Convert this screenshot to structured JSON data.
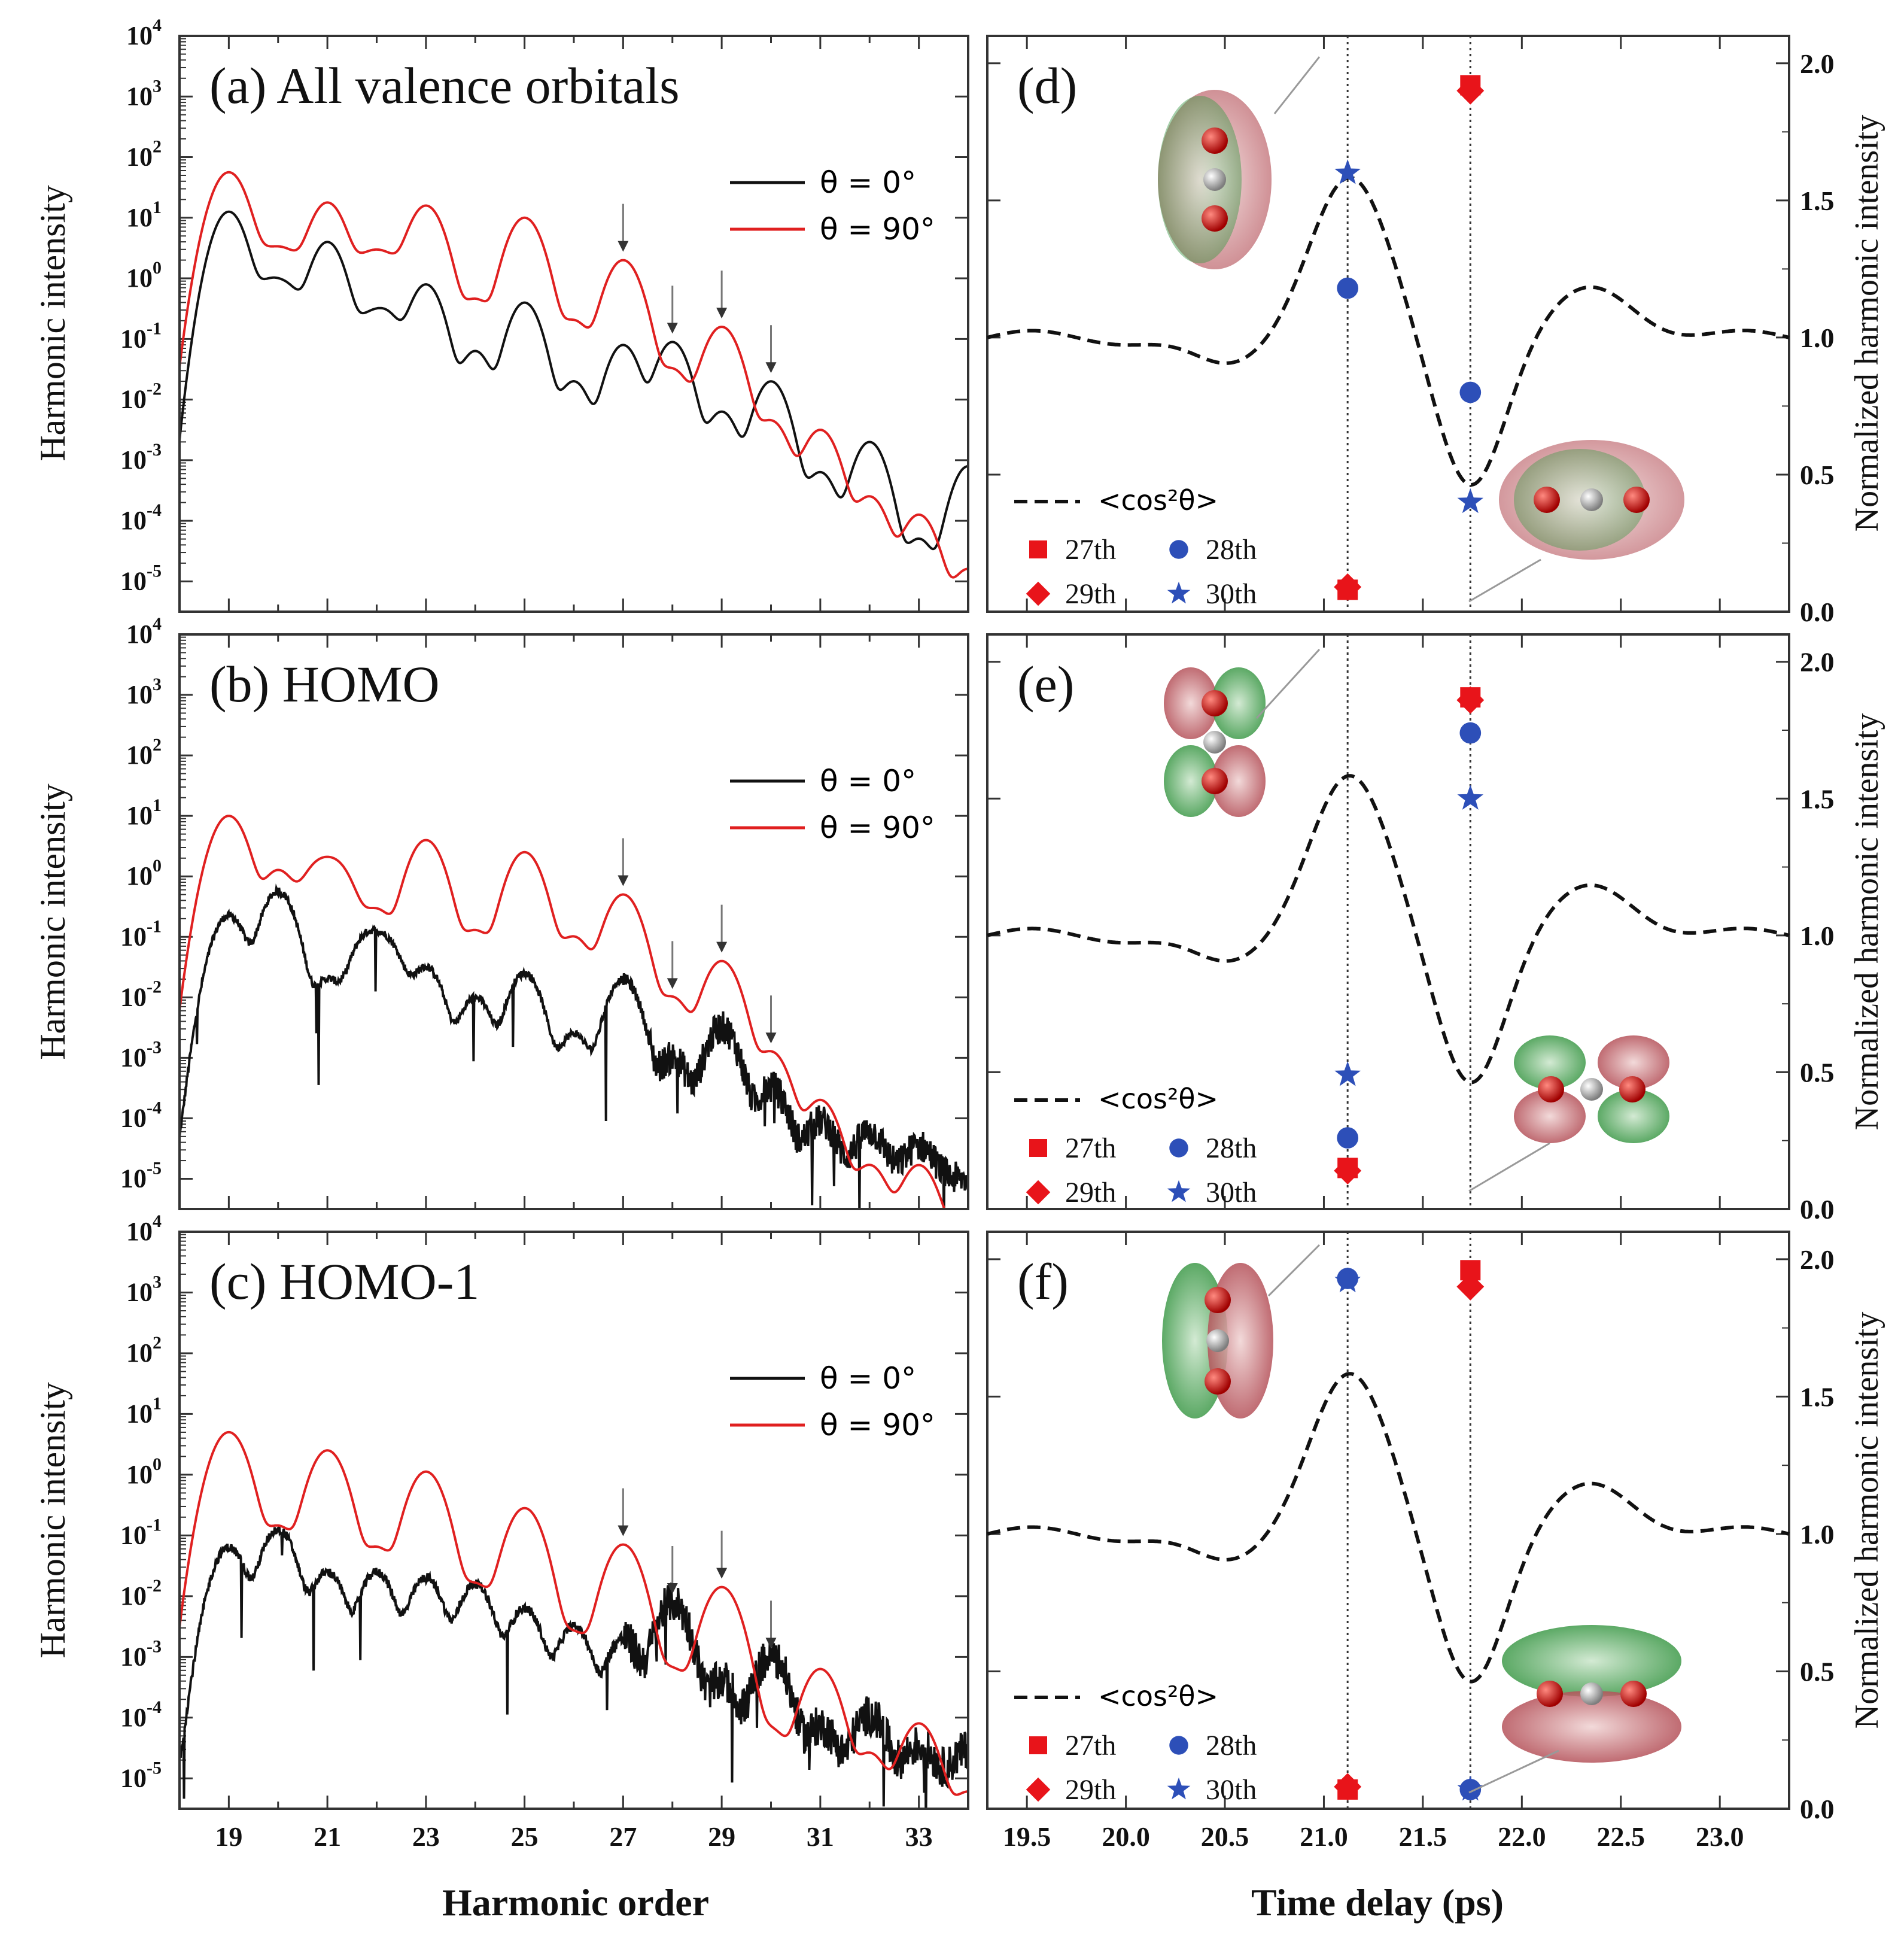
{
  "figure": {
    "left_axis_label": "Harmonic intensity",
    "right_axis_label": "Normalized harmonic intensity",
    "left_xlabel": "Harmonic order",
    "right_xlabel": "Time delay (ps)"
  },
  "colors": {
    "theta0": "#111111",
    "theta90": "#e02020",
    "red_marker": "#e8141a",
    "blue_marker": "#2d4fb8",
    "curve": "#111111",
    "frame": "#333333"
  },
  "chart_data": [
    {
      "id": "a",
      "type": "line",
      "scale": "log",
      "title": "(a) All valence orbitals",
      "xlabel": "Harmonic order",
      "ylabel": "Harmonic intensity",
      "xlim": [
        18.0,
        34.0
      ],
      "ylim_exp": [
        -5.5,
        4
      ],
      "xticks": [
        19,
        21,
        23,
        25,
        27,
        29,
        31,
        33
      ],
      "ytick_exps": [
        -5,
        -4,
        -3,
        -2,
        -1,
        0,
        1,
        2,
        3,
        4
      ],
      "legend": [
        "θ = 0°",
        "θ = 90°"
      ],
      "arrows_at": [
        27,
        28,
        29,
        30
      ],
      "noise_start": 34,
      "series": [
        {
          "name": "θ = 0°",
          "peaks": [
            [
              19,
              1.1
            ],
            [
              19.8,
              -0.1
            ],
            [
              20.2,
              -0.2
            ],
            [
              21,
              0.6
            ],
            [
              21.8,
              -0.7
            ],
            [
              22.2,
              -0.6
            ],
            [
              23,
              -0.1
            ],
            [
              24,
              -1.2
            ],
            [
              25,
              -0.4
            ],
            [
              26,
              -1.7
            ],
            [
              27,
              -1.1
            ],
            [
              28,
              -1.05
            ],
            [
              29,
              -2.2
            ],
            [
              30,
              -1.7
            ],
            [
              31,
              -3.2
            ],
            [
              32,
              -2.7
            ],
            [
              33,
              -4.3
            ],
            [
              34,
              -3.1
            ]
          ],
          "width": 0.24,
          "floor": -6.8,
          "jitter": 0.0
        },
        {
          "name": "θ = 90°",
          "peaks": [
            [
              19,
              1.75
            ],
            [
              19.8,
              0.35
            ],
            [
              20.2,
              0.35
            ],
            [
              21,
              1.25
            ],
            [
              21.8,
              0.3
            ],
            [
              22.2,
              0.3
            ],
            [
              23,
              1.2
            ],
            [
              24,
              -0.35
            ],
            [
              25,
              1.0
            ],
            [
              26,
              -0.7
            ],
            [
              27,
              0.3
            ],
            [
              28,
              -1.5
            ],
            [
              29,
              -0.8
            ],
            [
              30,
              -2.35
            ],
            [
              31,
              -2.5
            ],
            [
              32,
              -3.6
            ],
            [
              33,
              -3.9
            ],
            [
              34,
              -4.8
            ]
          ],
          "width": 0.26,
          "floor": -6.8,
          "jitter": 0.0
        }
      ]
    },
    {
      "id": "b",
      "type": "line",
      "scale": "log",
      "title": "(b) HOMO",
      "xlabel": "Harmonic order",
      "ylabel": "Harmonic intensity",
      "xlim": [
        18.0,
        34.0
      ],
      "ylim_exp": [
        -5.5,
        4
      ],
      "xticks": [
        19,
        21,
        23,
        25,
        27,
        29,
        31,
        33
      ],
      "ytick_exps": [
        -5,
        -4,
        -3,
        -2,
        -1,
        0,
        1,
        2,
        3,
        4
      ],
      "legend": [
        "θ = 0°",
        "θ = 90°"
      ],
      "arrows_at": [
        27,
        28,
        29,
        30
      ],
      "noise_start": 27.5,
      "series": [
        {
          "name": "θ = 0°",
          "peaks": [
            [
              19,
              -0.65
            ],
            [
              20,
              -0.25
            ],
            [
              21,
              -1.7
            ],
            [
              21.8,
              -1.0
            ],
            [
              22.2,
              -1.1
            ],
            [
              23,
              -1.5
            ],
            [
              24,
              -2.0
            ],
            [
              25,
              -1.6
            ],
            [
              26,
              -2.6
            ],
            [
              27,
              -1.7
            ],
            [
              28,
              -3.0
            ],
            [
              29,
              -2.5
            ],
            [
              30,
              -3.5
            ],
            [
              31,
              -4.1
            ],
            [
              32,
              -4.3
            ],
            [
              33,
              -4.6
            ]
          ],
          "width": 0.24,
          "floor": -5.0,
          "jitter": 0.25
        },
        {
          "name": "θ = 90°",
          "peaks": [
            [
              19,
              1.0
            ],
            [
              20,
              0.1
            ],
            [
              20.8,
              0.15
            ],
            [
              21.2,
              0.15
            ],
            [
              22,
              -0.55
            ],
            [
              23,
              0.6
            ],
            [
              24,
              -0.9
            ],
            [
              25,
              0.4
            ],
            [
              26,
              -1.0
            ],
            [
              27,
              -0.3
            ],
            [
              28,
              -2.0
            ],
            [
              29,
              -1.4
            ],
            [
              30,
              -2.9
            ],
            [
              31,
              -3.7
            ],
            [
              32,
              -4.8
            ],
            [
              33,
              -4.8
            ]
          ],
          "width": 0.26,
          "floor": -6.0,
          "jitter": 0.0
        }
      ]
    },
    {
      "id": "c",
      "type": "line",
      "scale": "log",
      "title": "(c) HOMO-1",
      "xlabel": "Harmonic order",
      "ylabel": "Harmonic intensity",
      "xlim": [
        18.0,
        34.0
      ],
      "ylim_exp": [
        -5.5,
        4
      ],
      "xticks": [
        19,
        21,
        23,
        25,
        27,
        29,
        31,
        33
      ],
      "ytick_exps": [
        -5,
        -4,
        -3,
        -2,
        -1,
        0,
        1,
        2,
        3,
        4
      ],
      "legend": [
        "θ = 0°",
        "θ = 90°"
      ],
      "arrows_at": [
        27,
        28,
        29,
        30
      ],
      "noise_start": 27.0,
      "series": [
        {
          "name": "θ = 0°",
          "peaks": [
            [
              19,
              -1.2
            ],
            [
              20,
              -0.9
            ],
            [
              21,
              -1.6
            ],
            [
              22,
              -1.6
            ],
            [
              23,
              -1.7
            ],
            [
              24,
              -1.8
            ],
            [
              25,
              -2.2
            ],
            [
              26,
              -2.5
            ],
            [
              27,
              -2.7
            ],
            [
              28,
              -2.1
            ],
            [
              29,
              -3.4
            ],
            [
              30,
              -3.0
            ],
            [
              31,
              -4.2
            ],
            [
              32,
              -4.0
            ],
            [
              33,
              -4.6
            ],
            [
              34,
              -4.7
            ]
          ],
          "width": 0.24,
          "floor": -5.0,
          "jitter": 0.3
        },
        {
          "name": "θ = 90°",
          "peaks": [
            [
              19,
              0.7
            ],
            [
              20,
              -0.85
            ],
            [
              21,
              0.4
            ],
            [
              22,
              -1.2
            ],
            [
              23,
              0.05
            ],
            [
              24,
              -1.8
            ],
            [
              25,
              -0.55
            ],
            [
              26,
              -2.6
            ],
            [
              27,
              -1.15
            ],
            [
              28,
              -3.2
            ],
            [
              29,
              -1.85
            ],
            [
              30,
              -4.2
            ],
            [
              31,
              -3.2
            ],
            [
              32,
              -4.6
            ],
            [
              33,
              -4.1
            ],
            [
              34,
              -5.3
            ]
          ],
          "width": 0.26,
          "floor": -6.0,
          "jitter": 0.0
        }
      ]
    },
    {
      "id": "d",
      "type": "scatter+line",
      "title": "(d)",
      "xlabel": "Time delay (ps)",
      "ylabel": "Normalized harmonic intensity",
      "xlim": [
        19.3,
        23.35
      ],
      "ylim": [
        0.0,
        2.1
      ],
      "xticks": [
        19.5,
        20.0,
        20.5,
        21.0,
        21.5,
        22.0,
        22.5,
        23.0
      ],
      "yticks": [
        0.0,
        0.5,
        1.0,
        1.5,
        2.0
      ],
      "vlines": [
        21.12,
        21.74
      ],
      "curve_name": "<cos²θ>",
      "legend": [
        "27th",
        "28th",
        "29th",
        "30th"
      ],
      "points": [
        {
          "series": "27th",
          "x": 21.12,
          "y": 0.08
        },
        {
          "series": "29th",
          "x": 21.12,
          "y": 0.09
        },
        {
          "series": "28th",
          "x": 21.12,
          "y": 1.18
        },
        {
          "series": "30th",
          "x": 21.12,
          "y": 1.6
        },
        {
          "series": "27th",
          "x": 21.74,
          "y": 1.92
        },
        {
          "series": "29th",
          "x": 21.74,
          "y": 1.9
        },
        {
          "series": "28th",
          "x": 21.74,
          "y": 0.8
        },
        {
          "series": "30th",
          "x": 21.74,
          "y": 0.4
        }
      ]
    },
    {
      "id": "e",
      "type": "scatter+line",
      "title": "(e)",
      "xlabel": "Time delay (ps)",
      "ylabel": "Normalized harmonic intensity",
      "xlim": [
        19.3,
        23.35
      ],
      "ylim": [
        0.0,
        2.1
      ],
      "xticks": [
        19.5,
        20.0,
        20.5,
        21.0,
        21.5,
        22.0,
        22.5,
        23.0
      ],
      "yticks": [
        0.0,
        0.5,
        1.0,
        1.5,
        2.0
      ],
      "vlines": [
        21.12,
        21.74
      ],
      "curve_name": "<cos²θ>",
      "legend": [
        "27th",
        "28th",
        "29th",
        "30th"
      ],
      "points": [
        {
          "series": "27th",
          "x": 21.12,
          "y": 0.15
        },
        {
          "series": "29th",
          "x": 21.12,
          "y": 0.14
        },
        {
          "series": "28th",
          "x": 21.12,
          "y": 0.26
        },
        {
          "series": "30th",
          "x": 21.12,
          "y": 0.49
        },
        {
          "series": "27th",
          "x": 21.74,
          "y": 1.87
        },
        {
          "series": "29th",
          "x": 21.74,
          "y": 1.86
        },
        {
          "series": "28th",
          "x": 21.74,
          "y": 1.74
        },
        {
          "series": "30th",
          "x": 21.74,
          "y": 1.5
        }
      ]
    },
    {
      "id": "f",
      "type": "scatter+line",
      "title": "(f)",
      "xlabel": "Time delay (ps)",
      "ylabel": "Normalized harmonic intensity",
      "xlim": [
        19.3,
        23.35
      ],
      "ylim": [
        0.0,
        2.1
      ],
      "xticks": [
        19.5,
        20.0,
        20.5,
        21.0,
        21.5,
        22.0,
        22.5,
        23.0
      ],
      "yticks": [
        0.0,
        0.5,
        1.0,
        1.5,
        2.0
      ],
      "vlines": [
        21.12,
        21.74
      ],
      "curve_name": "<cos²θ>",
      "legend": [
        "27th",
        "28th",
        "29th",
        "30th"
      ],
      "points": [
        {
          "series": "27th",
          "x": 21.12,
          "y": 0.07
        },
        {
          "series": "29th",
          "x": 21.12,
          "y": 0.08
        },
        {
          "series": "28th",
          "x": 21.12,
          "y": 1.93
        },
        {
          "series": "30th",
          "x": 21.12,
          "y": 1.92
        },
        {
          "series": "27th",
          "x": 21.74,
          "y": 1.96
        },
        {
          "series": "29th",
          "x": 21.74,
          "y": 1.9
        },
        {
          "series": "28th",
          "x": 21.74,
          "y": 0.07
        },
        {
          "series": "30th",
          "x": 21.74,
          "y": 0.07
        }
      ]
    }
  ]
}
